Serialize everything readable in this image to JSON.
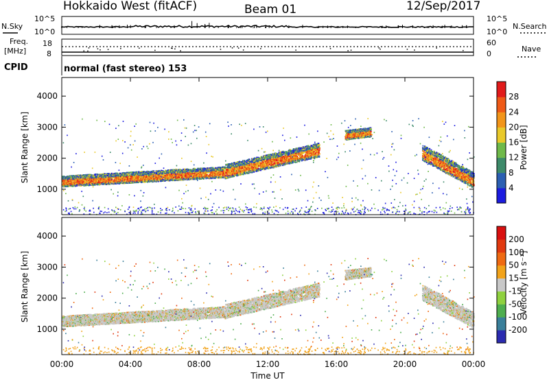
{
  "header": {
    "station": "Hokkaido West (fitACF)",
    "beam": "Beam 01",
    "date": "12/Sep/2017"
  },
  "status_panel": {
    "nsky_label": "N.Sky",
    "nsearch_label": "N.Search",
    "freq_label": "Freq.",
    "freq_unit": "[MHz]",
    "nave_label": "Nave",
    "cpid_label": "CPID",
    "noise_ticks_left": [
      "10^5",
      "10^0"
    ],
    "noise_ticks_right": [
      "10^5",
      "10^0"
    ],
    "freq_ticks": [
      "18",
      "8"
    ],
    "nave_ticks": [
      "60",
      "0"
    ],
    "cpid_text": "normal (fast stereo) 153"
  },
  "chart_data": [
    {
      "type": "heatmap",
      "panel": "power",
      "xlabel": "",
      "ylabel": "Slant Range [km]",
      "x_ticks": [
        "00:00",
        "04:00",
        "08:00",
        "12:00",
        "16:00",
        "20:00",
        "00:00"
      ],
      "y_ticks": [
        1000,
        2000,
        3000,
        4000
      ],
      "xlim": [
        0,
        24
      ],
      "ylim": [
        180,
        4600
      ],
      "colorbar": {
        "label": "Power [dB]",
        "ticks": [
          "4",
          "8",
          "12",
          "16",
          "20",
          "24",
          "28"
        ],
        "colors": [
          "#1c1cdf",
          "#2b5fb2",
          "#3d8a6a",
          "#6fb94a",
          "#e9c92a",
          "#f2951a",
          "#ef5a17",
          "#e11b1b"
        ]
      },
      "echo_bands": [
        {
          "t0": 0.0,
          "t1": 9.5,
          "r0_start": 1200,
          "r0_end": 1500,
          "width": 350
        },
        {
          "t0": 9.5,
          "t1": 15.0,
          "r0_start": 1500,
          "r0_end": 2200,
          "width": 450
        },
        {
          "t0": 16.5,
          "t1": 18.0,
          "r0_start": 2700,
          "r0_end": 2800,
          "width": 300
        },
        {
          "t0": 21.0,
          "t1": 24.0,
          "r0_start": 2100,
          "r0_end": 1200,
          "width": 500
        }
      ]
    },
    {
      "type": "heatmap",
      "panel": "velocity",
      "xlabel": "Time UT",
      "ylabel": "Slant Range [km]",
      "x_ticks": [
        "00:00",
        "04:00",
        "08:00",
        "12:00",
        "16:00",
        "20:00",
        "00:00"
      ],
      "y_ticks": [
        1000,
        2000,
        3000,
        4000
      ],
      "xlim": [
        0,
        24
      ],
      "ylim": [
        180,
        4600
      ],
      "colorbar": {
        "label": "Velocity [m s⁻¹]",
        "ticks": [
          "200",
          "100",
          "50",
          "15",
          "-15",
          "-50",
          "-100",
          "-200"
        ],
        "colors": [
          "#2b2bb0",
          "#3a7f9a",
          "#4fae4f",
          "#8fd13f",
          "#c8c8c8",
          "#f2a31a",
          "#ef6a12",
          "#e13a10",
          "#d91010"
        ]
      }
    }
  ]
}
